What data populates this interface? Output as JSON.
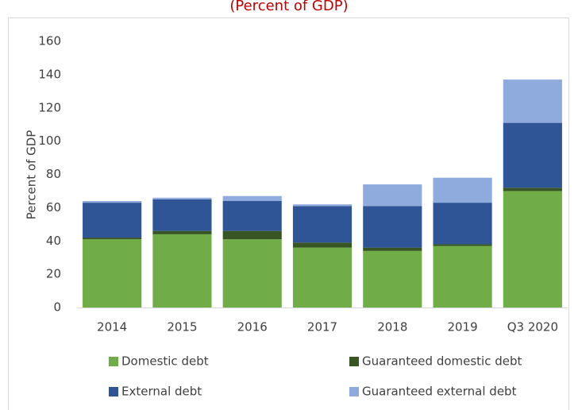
{
  "chart_data": {
    "type": "stacked_bar",
    "subtitle": "(Percent of GDP)",
    "y_label": "Percent of GDP",
    "categories": [
      "2014",
      "2015",
      "2016",
      "2017",
      "2018",
      "2019",
      "Q3 2020"
    ],
    "series": [
      {
        "name": "Domestic debt",
        "color": "#70ad47",
        "values": [
          41,
          44,
          41,
          36,
          34,
          37,
          70
        ]
      },
      {
        "name": "Guaranteed domestic debt",
        "color": "#375623",
        "values": [
          1,
          2,
          5,
          3,
          2,
          1,
          2
        ]
      },
      {
        "name": "External debt",
        "color": "#2f5597",
        "values": [
          21,
          19,
          18,
          22,
          25,
          25,
          39
        ]
      },
      {
        "name": "Guaranteed external debt",
        "color": "#8faadc",
        "values": [
          1,
          1,
          3,
          1,
          13,
          15,
          26
        ]
      }
    ],
    "ylim": [
      0,
      160
    ],
    "yticks": [
      0,
      20,
      40,
      60,
      80,
      100,
      120,
      140,
      160
    ],
    "grid": false,
    "legend": "bottom"
  }
}
